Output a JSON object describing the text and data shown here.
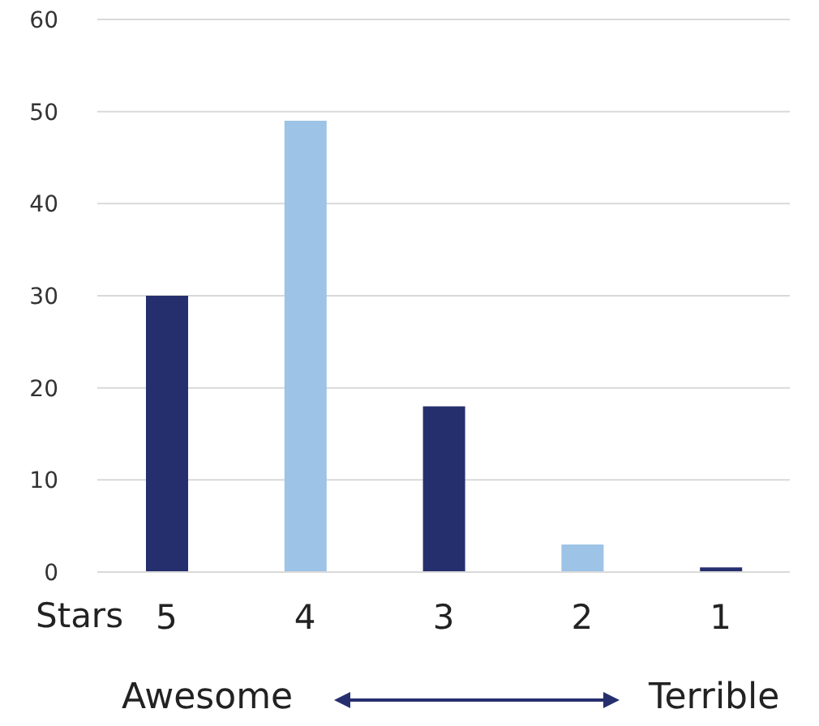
{
  "chart_data": {
    "type": "bar",
    "xlabel": "Stars",
    "categories": [
      "5",
      "4",
      "3",
      "2",
      "1"
    ],
    "values": [
      30,
      49,
      18,
      3,
      0.5
    ],
    "colors": [
      "#262f6e",
      "#9dc3e6",
      "#262f6e",
      "#9dc3e6",
      "#262f6e"
    ],
    "ylim": [
      0,
      60
    ],
    "yticks": [
      0,
      10,
      20,
      30,
      40,
      50,
      60
    ],
    "grid": "y",
    "annotations": [
      "Awesome",
      "Terrible"
    ]
  }
}
